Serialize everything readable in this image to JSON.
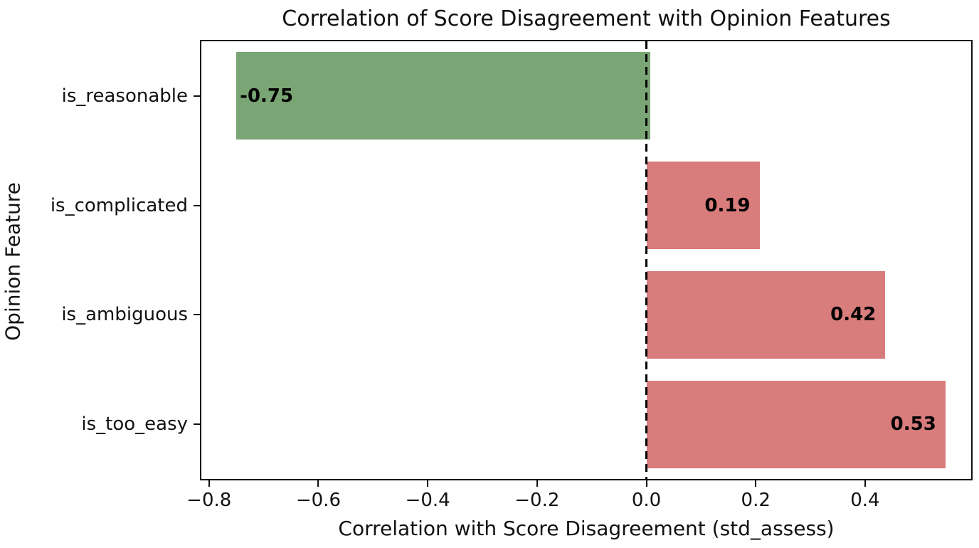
{
  "chart_data": {
    "type": "bar",
    "orientation": "horizontal",
    "title": "Correlation of Score Disagreement with Opinion Features",
    "xlabel": "Correlation with Score Disagreement (std_assess)",
    "ylabel": "Opinion Feature",
    "categories": [
      "is_reasonable",
      "is_complicated",
      "is_ambiguous",
      "is_too_easy"
    ],
    "values": [
      -0.75,
      0.19,
      0.42,
      0.53
    ],
    "value_labels": [
      "-0.75",
      "0.19",
      "0.42",
      "0.53"
    ],
    "xlim": [
      -0.814,
      0.594
    ],
    "x_ticks": [
      -0.8,
      -0.6,
      -0.4,
      -0.2,
      0.0,
      0.2,
      0.4
    ],
    "x_tick_labels": [
      "−0.8",
      "−0.6",
      "−0.4",
      "−0.2",
      "0.0",
      "0.2",
      "0.4"
    ],
    "bar_height_fraction": 0.8,
    "colors": {
      "negative_bar": "#7aa574",
      "positive_bar": "#d87c7c",
      "spine": "#101010",
      "text": "#111111",
      "zero_line": "#000000"
    },
    "zero_line": {
      "x": 0.0,
      "style": "dashed"
    },
    "grid": false,
    "legend": null
  }
}
